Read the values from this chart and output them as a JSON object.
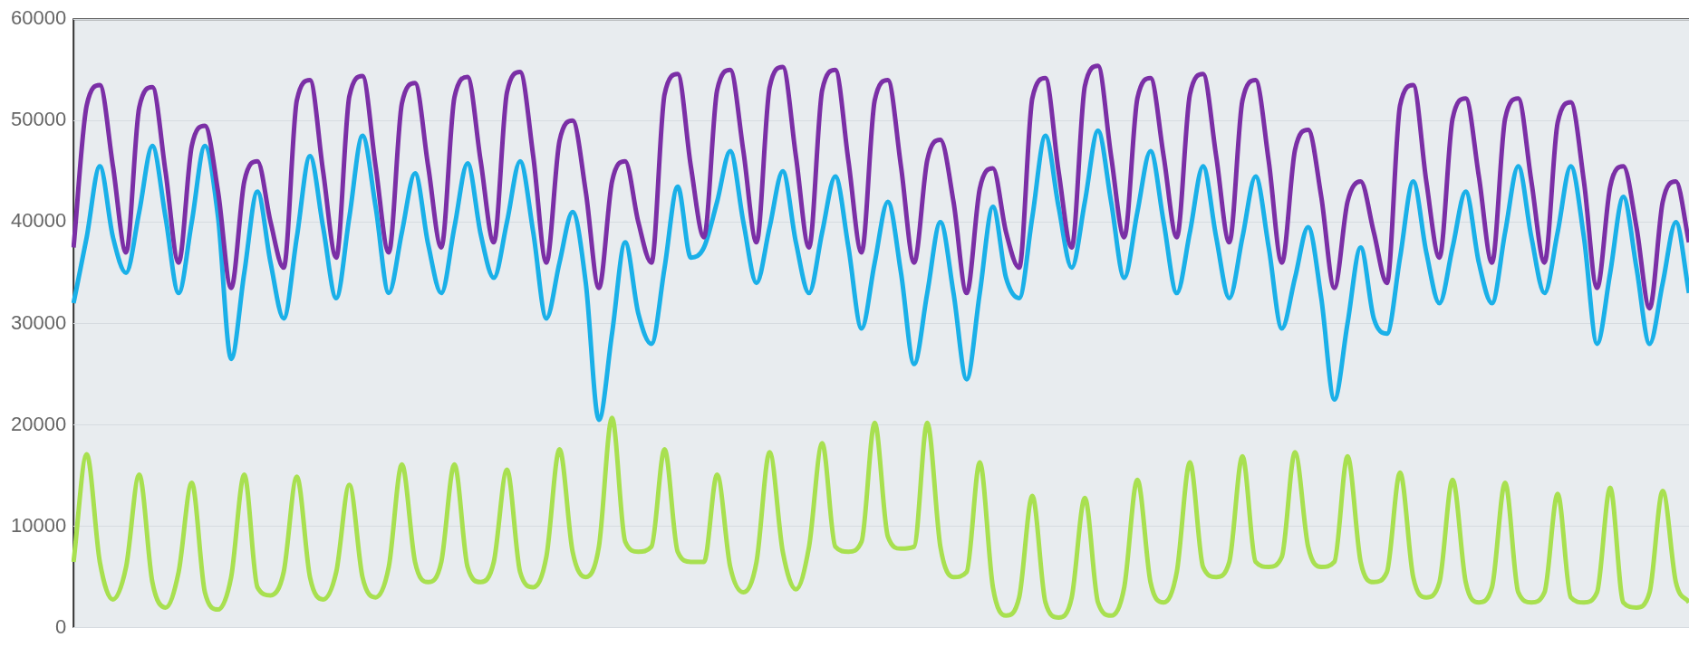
{
  "chart_data": {
    "type": "line",
    "categories": [
      null,
      null,
      null,
      null,
      null,
      null,
      null,
      null,
      null,
      null,
      null,
      null,
      null,
      null,
      null,
      null,
      null,
      null,
      null,
      null,
      null,
      null,
      null,
      null,
      null,
      null,
      null,
      null,
      null,
      null,
      null,
      null,
      null,
      null,
      null,
      null,
      null,
      null,
      null,
      null,
      null,
      null,
      null,
      null,
      null,
      null,
      null,
      null,
      null,
      null,
      null,
      null,
      null,
      null,
      null,
      null,
      null,
      null,
      null,
      null,
      null,
      null,
      null,
      null,
      null,
      null,
      null,
      null,
      null,
      null,
      null,
      null,
      null,
      null,
      null,
      null,
      null,
      null,
      null,
      null,
      null,
      null,
      null,
      null,
      null,
      null,
      null,
      null,
      null,
      null,
      null,
      null,
      null,
      null,
      null,
      null,
      null,
      null,
      null,
      null,
      null,
      null,
      null,
      null,
      null,
      null,
      null,
      null,
      null,
      null,
      null,
      null,
      null,
      null,
      null,
      null,
      null,
      null,
      null,
      null,
      null,
      null,
      null,
      null
    ],
    "ylim": [
      0,
      60000
    ],
    "yticks": [
      0,
      10000,
      20000,
      30000,
      40000,
      50000,
      60000
    ],
    "grid": "y",
    "series": [
      {
        "color": "#7b2fa6",
        "values": [
          37500,
          51500,
          53500,
          45500,
          37000,
          51300,
          53300,
          45000,
          36000,
          47500,
          49500,
          43000,
          33500,
          44000,
          46000,
          40000,
          35500,
          52000,
          54000,
          45000,
          36500,
          52400,
          54400,
          45500,
          37000,
          51700,
          53700,
          45500,
          37500,
          52300,
          54300,
          46000,
          38000,
          52800,
          54800,
          46500,
          36000,
          48000,
          50000,
          43000,
          33500,
          44000,
          46000,
          40000,
          36000,
          52600,
          54600,
          45500,
          38500,
          53000,
          55000,
          47000,
          38000,
          53300,
          55300,
          46500,
          37500,
          53000,
          55000,
          46000,
          37000,
          52000,
          54000,
          45500,
          36000,
          46100,
          48100,
          42000,
          33000,
          43300,
          45300,
          39000,
          35500,
          52200,
          54200,
          45000,
          37500,
          53400,
          55400,
          46500,
          38500,
          52200,
          54200,
          46500,
          38500,
          52600,
          54600,
          46500,
          38000,
          52000,
          54000,
          46000,
          36000,
          47100,
          49100,
          42500,
          33500,
          42000,
          44000,
          39000,
          34000,
          51500,
          53500,
          44000,
          36500,
          50200,
          52200,
          44500,
          36000,
          50200,
          52200,
          44000,
          36000,
          49800,
          51800,
          44000,
          33500,
          43500,
          45500,
          39500,
          31500,
          42000,
          44000,
          38000
        ]
      },
      {
        "color": "#1ab0e8",
        "values": [
          32000,
          38500,
          45500,
          38500,
          35000,
          41000,
          47500,
          40500,
          33000,
          40000,
          47500,
          40500,
          26500,
          35000,
          43000,
          36000,
          30500,
          38500,
          46500,
          39500,
          32500,
          40500,
          48500,
          41500,
          33000,
          39000,
          44800,
          37800,
          33000,
          39500,
          45800,
          38800,
          34500,
          40000,
          46000,
          39000,
          30500,
          36000,
          41000,
          34000,
          20500,
          29000,
          38000,
          31000,
          28000,
          35500,
          43500,
          36500,
          37500,
          42000,
          47000,
          40000,
          34000,
          39500,
          45000,
          38000,
          33000,
          39000,
          44500,
          37500,
          29500,
          36000,
          42000,
          35000,
          26000,
          33000,
          40000,
          33000,
          24500,
          33000,
          41500,
          34500,
          32500,
          40500,
          48500,
          41500,
          35500,
          42000,
          49000,
          42000,
          34500,
          41000,
          47000,
          40000,
          33000,
          39000,
          45500,
          38500,
          32500,
          38500,
          44500,
          37500,
          29500,
          34500,
          39500,
          32500,
          22500,
          30000,
          37500,
          30500,
          29000,
          36500,
          44000,
          37000,
          32000,
          37500,
          43000,
          36000,
          32000,
          39000,
          45500,
          38500,
          33000,
          39000,
          45500,
          38500,
          28000,
          35000,
          42500,
          35500,
          28000,
          34000,
          40000,
          33000
        ]
      },
      {
        "color": "#a8e050",
        "values": [
          6500,
          17100,
          6500,
          2800,
          6000,
          15100,
          4500,
          2000,
          5500,
          14300,
          3500,
          1800,
          5000,
          15100,
          4000,
          3200,
          5500,
          14900,
          5000,
          2800,
          5500,
          14100,
          5000,
          3000,
          6000,
          16100,
          6500,
          4500,
          6500,
          16100,
          6000,
          4500,
          6500,
          15600,
          5500,
          4000,
          7000,
          17600,
          7500,
          5000,
          8000,
          20700,
          8500,
          7500,
          8000,
          17600,
          7500,
          6500,
          6500,
          15100,
          6000,
          3500,
          6500,
          17300,
          7500,
          3800,
          8000,
          18200,
          8000,
          7500,
          8500,
          20200,
          9000,
          7800,
          8000,
          20200,
          8000,
          5000,
          5500,
          16300,
          4000,
          1200,
          3000,
          13000,
          2500,
          1000,
          3000,
          12800,
          2500,
          1200,
          4000,
          14600,
          4500,
          2500,
          5500,
          16300,
          6000,
          5000,
          6500,
          16900,
          6500,
          6000,
          7000,
          17300,
          8000,
          6000,
          6500,
          16900,
          6500,
          4500,
          5500,
          15300,
          5000,
          3000,
          4500,
          14600,
          4500,
          2500,
          4000,
          14300,
          3500,
          2500,
          3500,
          13200,
          3000,
          2500,
          3500,
          13800,
          2500,
          2000,
          3500,
          13500,
          4500,
          2500
        ]
      }
    ]
  }
}
